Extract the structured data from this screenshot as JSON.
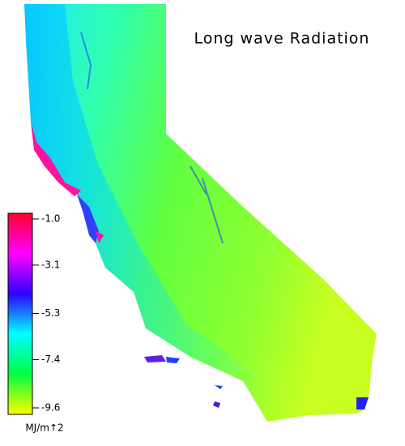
{
  "title": "Long wave Radiation",
  "legend": {
    "lim": [
      -1,
      -9.6
    ],
    "ticks": [
      {
        "value": -1,
        "label": "-1.0"
      },
      -3.1,
      -5.3,
      -7.4,
      {
        "value": -9.6,
        "label": "-9.6"
      }
    ],
    "colors": [
      "#ff0030",
      "#ff00ff",
      "#3000ff",
      "#00ffff",
      "#00ff40",
      "#ffff00"
    ],
    "unit": "MJ/m↑2"
  }
}
